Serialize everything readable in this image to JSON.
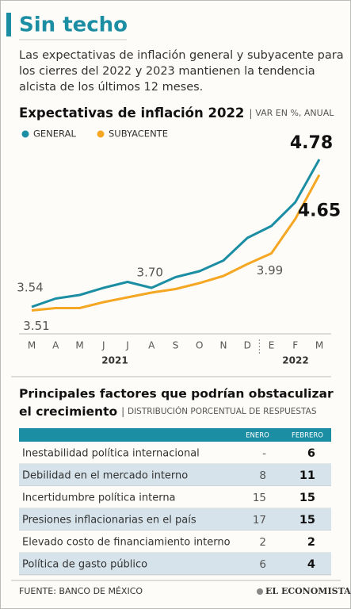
{
  "header": {
    "title": "Sin techo",
    "subtitle_lines": [
      "Las expectativas de inflación general y subyacente para",
      "los cierres del 2022 y 2023 mantienen la tendencia",
      "alcista de los últimos 12 meses."
    ]
  },
  "chart_data": {
    "type": "line",
    "title": "Expectativas de inflación 2022",
    "unit_note": "VAR EN %, ANUAL",
    "groups": [
      {
        "label": "2021",
        "categories": [
          "M",
          "A",
          "M",
          "J",
          "J",
          "A",
          "S",
          "O",
          "N",
          "D"
        ]
      },
      {
        "label": "2022",
        "categories": [
          "E",
          "F",
          "M"
        ]
      }
    ],
    "series": [
      {
        "name": "GENERAL",
        "color": "#1b8ea3",
        "values": [
          3.54,
          3.61,
          3.64,
          3.7,
          3.75,
          3.7,
          3.79,
          3.84,
          3.93,
          4.12,
          4.22,
          4.42,
          4.78
        ],
        "value_labels": [
          "3.54",
          null,
          null,
          null,
          null,
          "3.70",
          null,
          null,
          null,
          null,
          null,
          null,
          "4.78"
        ]
      },
      {
        "name": "SUBYACENTE",
        "color": "#f5a623",
        "values": [
          3.51,
          3.53,
          3.53,
          3.58,
          3.62,
          3.66,
          3.69,
          3.74,
          3.8,
          3.9,
          3.99,
          4.28,
          4.65
        ],
        "value_labels": [
          "3.51",
          null,
          null,
          null,
          null,
          null,
          null,
          null,
          null,
          null,
          "3.99",
          null,
          "4.65"
        ]
      }
    ],
    "legend": "top-left"
  },
  "table": {
    "title_lines": [
      "Principales factores que podrían obstaculizar",
      "el crecimiento"
    ],
    "note": "DISTRIBUCIÓN PORCENTUAL DE RESPUESTAS",
    "columns": [
      "ENERO",
      "FEBRERO"
    ],
    "rows": [
      [
        "Inestabilidad política internacional",
        "-",
        "6"
      ],
      [
        "Debilidad en el mercado interno",
        "8",
        "11"
      ],
      [
        "Incertidumbre política interna",
        "15",
        "15"
      ],
      [
        "Presiones inflacionarias en el país",
        "17",
        "15"
      ],
      [
        "Elevado costo de financiamiento interno",
        "2",
        "2"
      ],
      [
        "Política de gasto público",
        "6",
        "4"
      ]
    ]
  },
  "footer": {
    "source": "FUENTE: BANCO DE MÉXICO",
    "brand": "EL ECONOMISTA"
  }
}
